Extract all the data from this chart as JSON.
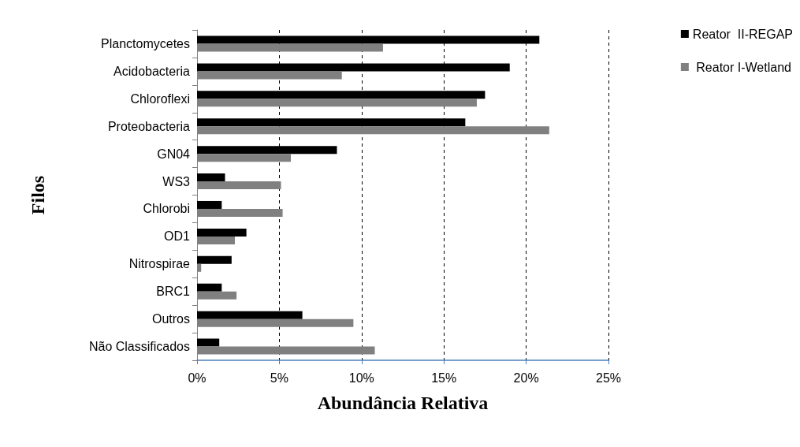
{
  "chart_data": {
    "type": "bar",
    "orientation": "horizontal",
    "xlabel": "Abundância Relativa",
    "ylabel": "Filos",
    "categories": [
      "Planctomycetes",
      "Acidobacteria",
      "Chloroflexi",
      "Proteobacteria",
      "GN04",
      "WS3",
      "Chlorobi",
      "OD1",
      "Nitrospirae",
      "BRC1",
      "Outros",
      "Não Classificados"
    ],
    "series": [
      {
        "name": "Reator  II-REGAP",
        "color": "#000000",
        "values": [
          20.8,
          19.0,
          17.5,
          16.3,
          8.5,
          1.7,
          1.5,
          3.0,
          2.1,
          1.5,
          6.4,
          1.35
        ]
      },
      {
        "name": " Reator I-Wetland",
        "color": "#808080",
        "values": [
          11.3,
          8.8,
          17.0,
          21.4,
          5.7,
          5.1,
          5.2,
          2.3,
          0.25,
          2.4,
          9.5,
          10.8
        ]
      }
    ],
    "xlim": [
      0,
      25
    ],
    "xticks": [
      {
        "value": 0,
        "label": "0%"
      },
      {
        "value": 5,
        "label": "5%"
      },
      {
        "value": 10,
        "label": "10%"
      },
      {
        "value": 15,
        "label": "15%"
      },
      {
        "value": 20,
        "label": "20%"
      },
      {
        "value": 25,
        "label": "25%"
      }
    ],
    "grid": "x",
    "legend": "top right"
  }
}
